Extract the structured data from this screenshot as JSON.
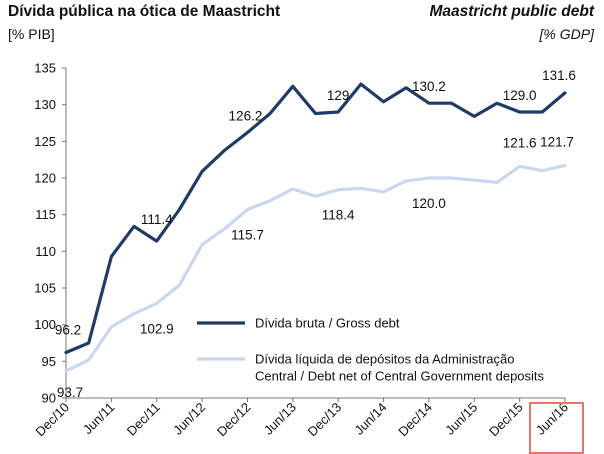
{
  "header": {
    "title_pt": "Dívida pública na ótica de Maastricht",
    "title_en": "Maastricht public debt",
    "unit_pt": "[% PIB]",
    "unit_en": "[% GDP]"
  },
  "chart_data": {
    "type": "line",
    "x": [
      "Dec/10",
      "Mar/11",
      "Jun/11",
      "Sep/11",
      "Dec/11",
      "Mar/12",
      "Jun/12",
      "Sep/12",
      "Dec/12",
      "Mar/13",
      "Jun/13",
      "Sep/13",
      "Dec/13",
      "Mar/14",
      "Jun/14",
      "Sep/14",
      "Dec/14",
      "Mar/15",
      "Jun/15",
      "Sep/15",
      "Dec/15",
      "Mar/16",
      "Jun/16"
    ],
    "x_tick_labels": [
      "Dec/10",
      "Jun/11",
      "Dec/11",
      "Jun/12",
      "Dec/12",
      "Jun/13",
      "Dec/13",
      "Jun/14",
      "Dec/14",
      "Jun/15",
      "Dec/15",
      "Jun/16"
    ],
    "highlighted_tick": "Jun/16",
    "y_ticks": [
      90,
      95,
      100,
      105,
      110,
      115,
      120,
      125,
      130,
      135
    ],
    "ylim": [
      90,
      135
    ],
    "series": [
      {
        "name": "Dívida bruta / Gross debt",
        "color": "#1f3b66",
        "values": [
          96.2,
          97.5,
          109.3,
          113.4,
          111.4,
          115.7,
          120.9,
          123.8,
          126.2,
          128.8,
          132.5,
          128.8,
          129.0,
          132.8,
          130.4,
          132.3,
          130.2,
          130.2,
          128.4,
          130.2,
          129.0,
          129.0,
          131.6
        ]
      },
      {
        "name": "Dívida líquida de depósitos da Administração Central / Debt net of Central Government deposits",
        "color": "#c9d8ee",
        "values": [
          93.7,
          95.2,
          99.7,
          101.5,
          102.9,
          105.4,
          110.9,
          113.1,
          115.7,
          116.9,
          118.5,
          117.5,
          118.4,
          118.6,
          118.1,
          119.6,
          120.0,
          120.0,
          119.7,
          119.4,
          121.6,
          121.0,
          121.7
        ]
      }
    ],
    "data_labels": [
      {
        "series": 0,
        "index": 0,
        "text": "96.2"
      },
      {
        "series": 0,
        "index": 4,
        "text": "111.4"
      },
      {
        "series": 0,
        "index": 8,
        "text": "126.2"
      },
      {
        "series": 0,
        "index": 12,
        "text": "129"
      },
      {
        "series": 0,
        "index": 16,
        "text": "130.2"
      },
      {
        "series": 0,
        "index": 20,
        "text": "129.0"
      },
      {
        "series": 0,
        "index": 22,
        "text": "131.6"
      },
      {
        "series": 1,
        "index": 0,
        "text": "93.7"
      },
      {
        "series": 1,
        "index": 4,
        "text": "102.9"
      },
      {
        "series": 1,
        "index": 8,
        "text": "115.7"
      },
      {
        "series": 1,
        "index": 12,
        "text": "118.4"
      },
      {
        "series": 1,
        "index": 16,
        "text": "120.0"
      },
      {
        "series": 1,
        "index": 20,
        "text": "121.6"
      },
      {
        "series": 1,
        "index": 22,
        "text": "121.7"
      }
    ],
    "legend": {
      "items": [
        {
          "series": 0,
          "lines": [
            "Dívida bruta / Gross debt"
          ]
        },
        {
          "series": 1,
          "lines": [
            "Dívida líquida de depósitos da Administração",
            "Central / Debt net of Central Government deposits"
          ]
        }
      ],
      "placement": "bottom-right inside plot"
    },
    "grid": false
  }
}
